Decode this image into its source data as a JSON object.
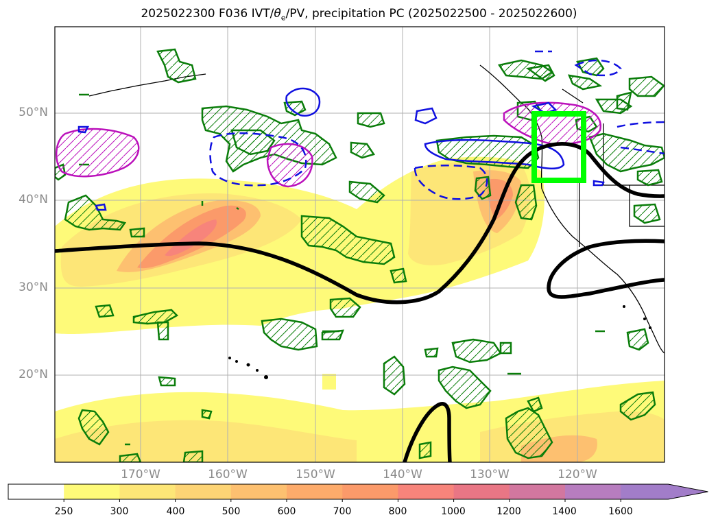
{
  "title_parts": {
    "prefix": "2025022300 F036 IVT/",
    "theta": "θ",
    "theta_sub": "e",
    "suffix": "/PV, precipitation PC (2025022500 - 2025022600)"
  },
  "lat_labels": [
    "50°N",
    "40°N",
    "30°N",
    "20°N"
  ],
  "lon_labels": [
    "170°W",
    "160°W",
    "150°W",
    "140°W",
    "130°W",
    "120°W"
  ],
  "colorbar": {
    "ticks": [
      "250",
      "300",
      "400",
      "500",
      "600",
      "700",
      "800",
      "1000",
      "1200",
      "1400",
      "1600"
    ],
    "colors": [
      "#ffffff",
      "#fefa79",
      "#fde677",
      "#fdd475",
      "#fdc070",
      "#fdab6b",
      "#fb9a6a",
      "#f7847b",
      "#e97685",
      "#d2779f",
      "#b77dbf",
      "#a27dc9"
    ]
  },
  "colors": {
    "precip_green": "#0a7d0a",
    "blue": "#1010e0",
    "magenta": "#bb10bb",
    "box": "#00ff00",
    "pv_line": "#000000"
  }
}
